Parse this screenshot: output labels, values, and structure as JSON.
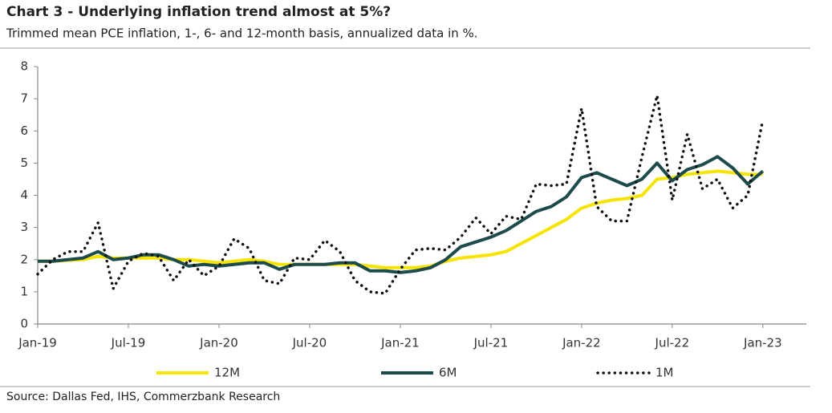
{
  "chart_data": {
    "type": "line",
    "title": "Chart 3 - Underlying inflation trend almost at 5%?",
    "subtitle": "Trimmed mean PCE inflation, 1-, 6- and 12-month basis, annualized data in %.",
    "source": "Source: Dallas Fed, IHS, Commerzbank Research",
    "categories": [
      "Jan-19",
      null,
      null,
      null,
      null,
      null,
      "Jul-19",
      null,
      null,
      null,
      null,
      null,
      "Jan-20",
      null,
      null,
      null,
      null,
      null,
      "Jul-20",
      null,
      null,
      null,
      null,
      null,
      "Jan-21",
      null,
      null,
      null,
      null,
      null,
      "Jul-21",
      null,
      null,
      null,
      null,
      null,
      "Jan-22",
      null,
      null,
      null,
      null,
      null,
      "Jul-22",
      null,
      null,
      null,
      null,
      null,
      "Jan-23"
    ],
    "series": [
      {
        "name": "12M",
        "color": "#f5e400",
        "style": "solid",
        "values": [
          1.95,
          1.95,
          1.98,
          2.0,
          2.1,
          2.05,
          2.05,
          2.05,
          2.05,
          2.0,
          2.0,
          1.95,
          1.9,
          1.95,
          2.0,
          1.95,
          1.85,
          1.85,
          1.85,
          1.85,
          1.85,
          1.85,
          1.8,
          1.75,
          1.75,
          1.75,
          1.8,
          1.95,
          2.05,
          2.1,
          2.15,
          2.25,
          2.5,
          2.75,
          3.0,
          3.25,
          3.6,
          3.75,
          3.85,
          3.9,
          4.0,
          4.5,
          4.55,
          4.65,
          4.7,
          4.75,
          4.7,
          4.65,
          4.65
        ]
      },
      {
        "name": "6M",
        "color": "#1d4a4a",
        "style": "solid",
        "values": [
          1.95,
          1.95,
          2.0,
          2.05,
          2.25,
          2.0,
          2.05,
          2.15,
          2.15,
          2.0,
          1.8,
          1.85,
          1.8,
          1.85,
          1.9,
          1.9,
          1.7,
          1.85,
          1.85,
          1.85,
          1.9,
          1.9,
          1.65,
          1.65,
          1.6,
          1.65,
          1.75,
          2.0,
          2.4,
          2.55,
          2.7,
          2.9,
          3.2,
          3.5,
          3.65,
          3.95,
          4.55,
          4.7,
          4.5,
          4.3,
          4.5,
          5.0,
          4.45,
          4.8,
          4.95,
          5.2,
          4.85,
          4.35,
          4.75
        ]
      },
      {
        "name": "1M",
        "color": "#111111",
        "style": "dotted",
        "values": [
          1.55,
          2.0,
          2.25,
          2.25,
          3.15,
          1.1,
          1.95,
          2.2,
          2.1,
          1.35,
          2.0,
          1.5,
          1.8,
          2.65,
          2.35,
          1.35,
          1.25,
          2.05,
          2.0,
          2.6,
          2.25,
          1.35,
          1.0,
          0.95,
          1.7,
          2.3,
          2.35,
          2.3,
          2.7,
          3.3,
          2.8,
          3.35,
          3.25,
          4.35,
          4.3,
          4.35,
          6.7,
          3.65,
          3.2,
          3.2,
          5.2,
          7.1,
          3.85,
          5.9,
          4.2,
          4.5,
          3.6,
          4.0,
          6.35
        ]
      }
    ],
    "ylim": [
      0,
      8
    ],
    "yticks": [
      0,
      1,
      2,
      3,
      4,
      5,
      6,
      7,
      8
    ],
    "grid": false,
    "legend": "bottom"
  }
}
